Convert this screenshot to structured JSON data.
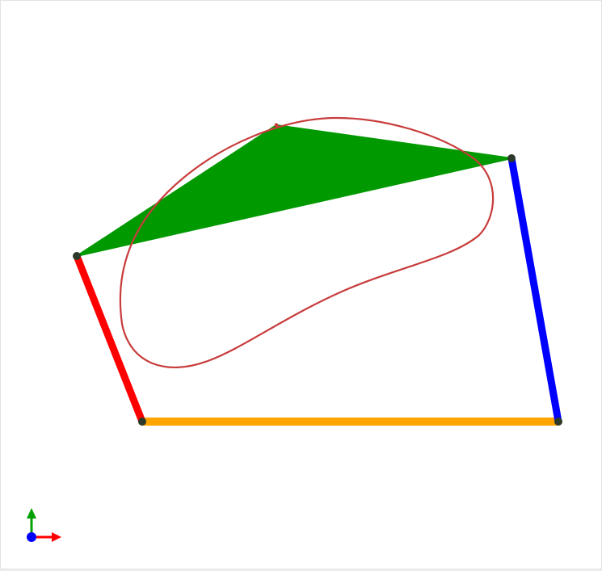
{
  "title": "",
  "colors": {
    "background": "#ffffff",
    "coupler": "#009900",
    "coupler_curve": "#c83c3c",
    "crank": "#ff0000",
    "rocker": "#0000ff",
    "ground": "#ffa500",
    "joint": "#2b3a2b",
    "axis_x": "#ff0000",
    "axis_y": "#00a000",
    "axis_z": "#0000ff"
  },
  "mechanism": {
    "type": "four-bar linkage",
    "links": [
      "ground-link",
      "crank-link",
      "coupler-link",
      "rocker-link"
    ],
    "joints": [
      "ground-pivot-left",
      "ground-pivot-right",
      "crank-coupler-joint",
      "coupler-rocker-joint",
      "coupler-point"
    ]
  },
  "axes_indicator": {
    "icons": [
      "x-axis-arrow-icon",
      "y-axis-arrow-icon",
      "z-axis-origin-icon"
    ]
  }
}
